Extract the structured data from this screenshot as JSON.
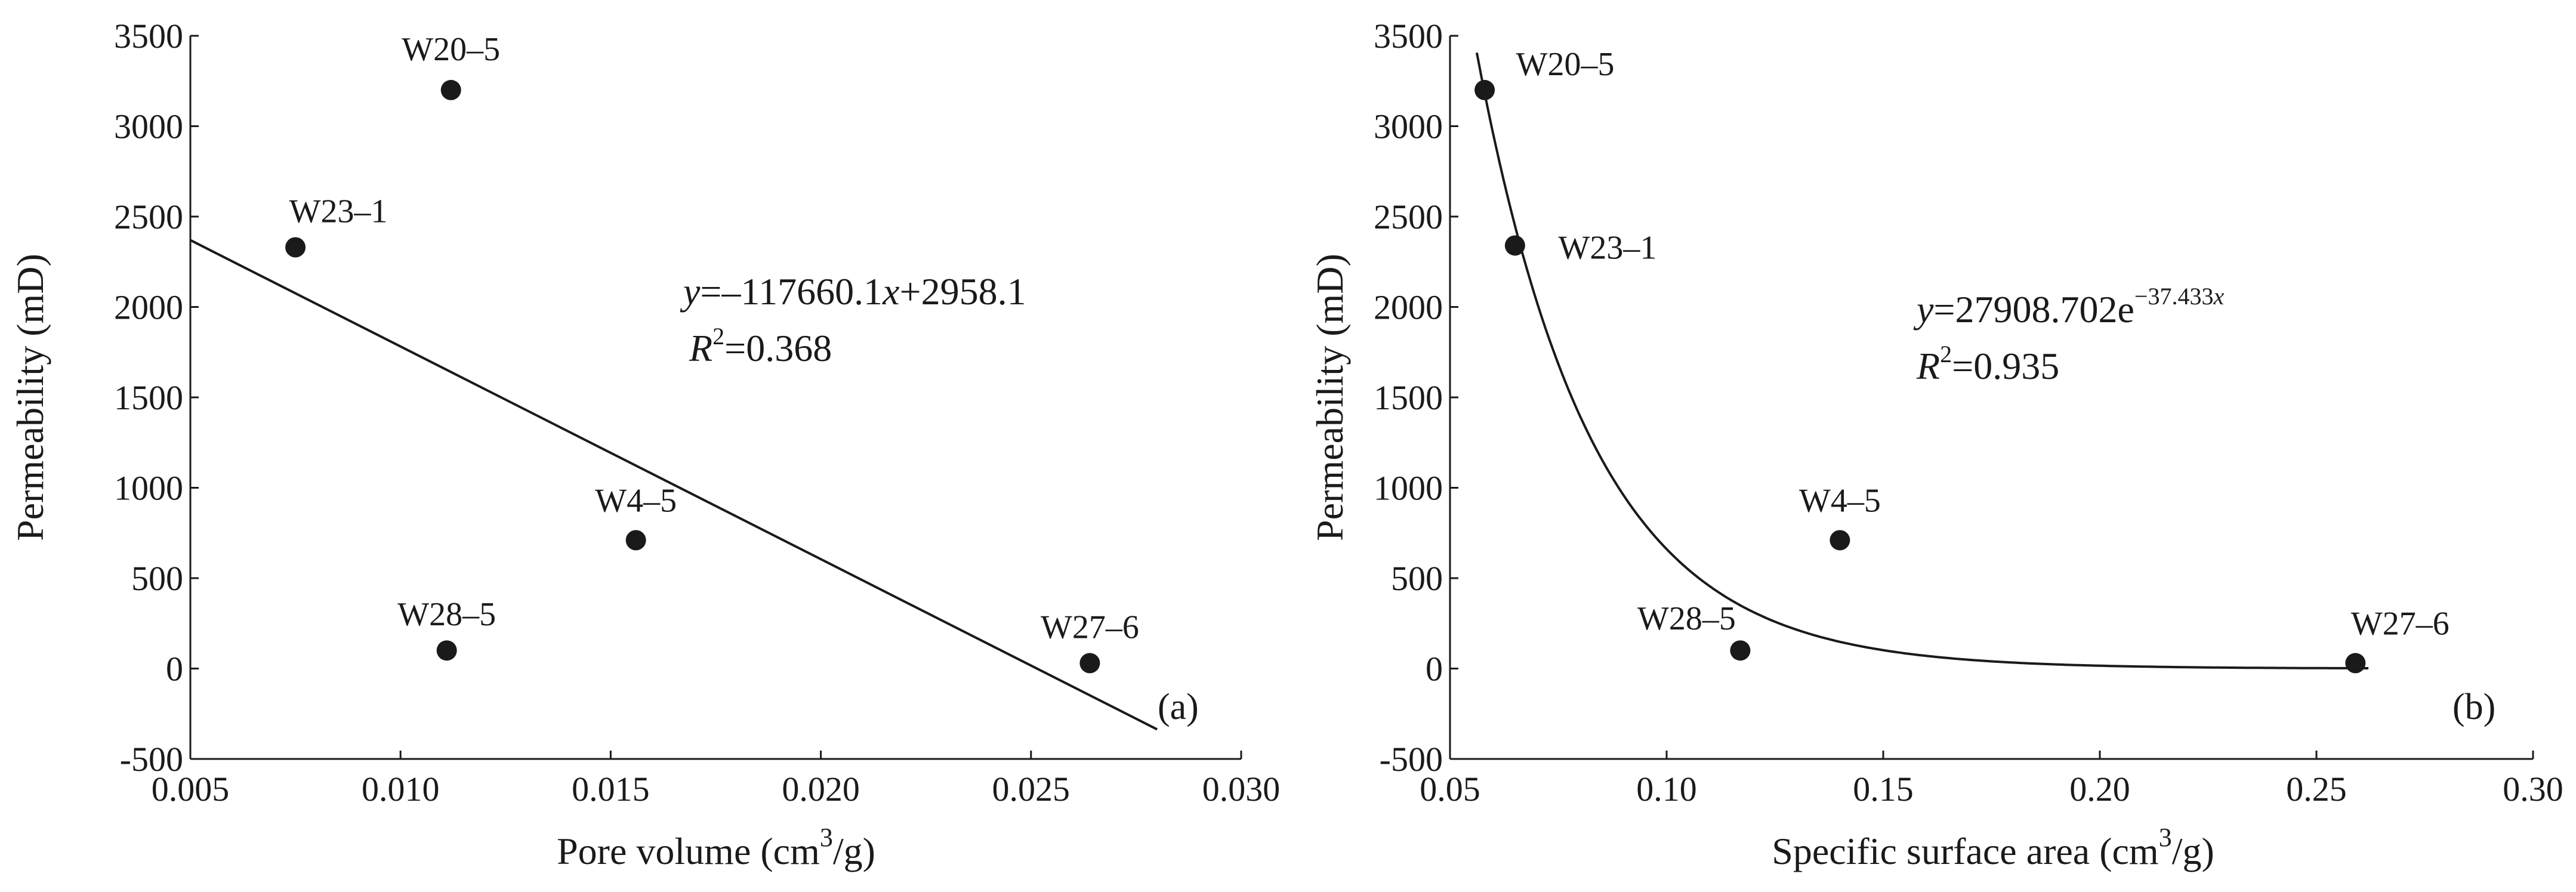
{
  "chart_data": [
    {
      "type": "scatter",
      "panel_label": "(a)",
      "xlabel_main": "Pore volume (cm",
      "xlabel_sup": "3",
      "xlabel_tail": "/g)",
      "ylabel": "Permeability (mD)",
      "xlim": [
        0.005,
        0.03
      ],
      "ylim": [
        -500,
        3500
      ],
      "x_ticks": [
        0.005,
        0.01,
        0.015,
        0.02,
        0.025,
        0.03
      ],
      "x_tick_labels": [
        "0.005",
        "0.010",
        "0.015",
        "0.020",
        "0.025",
        "0.030"
      ],
      "y_ticks": [
        -500,
        0,
        500,
        1000,
        1500,
        2000,
        2500,
        3000,
        3500
      ],
      "y_tick_labels": [
        "-500",
        "0",
        "500",
        "1000",
        "1500",
        "2000",
        "2500",
        "3000",
        "3500"
      ],
      "points": [
        {
          "label": "W20–5",
          "x": 0.0112,
          "y": 3200
        },
        {
          "label": "W23–1",
          "x": 0.0075,
          "y": 2330
        },
        {
          "label": "W4–5",
          "x": 0.0156,
          "y": 710
        },
        {
          "label": "W28–5",
          "x": 0.0111,
          "y": 100
        },
        {
          "label": "W27–6",
          "x": 0.0264,
          "y": 30
        }
      ],
      "fit": {
        "kind": "linear",
        "slope": -117660.1,
        "intercept": 2958.1,
        "x_from": 0.005,
        "x_to": 0.028
      },
      "equation": {
        "y": "y",
        "eq": "=–117660.1",
        "x": "x",
        "rest": "+2958.1",
        "r2_r": "R",
        "r2_sup": "2",
        "r2_val": "=0.368"
      }
    },
    {
      "type": "scatter",
      "panel_label": "(b)",
      "xlabel_main": "Specific surface area (cm",
      "xlabel_sup": "3",
      "xlabel_tail": "/g)",
      "ylabel": "Permeability (mD)",
      "xlim": [
        0.05,
        0.3
      ],
      "ylim": [
        -500,
        3500
      ],
      "x_ticks": [
        0.05,
        0.1,
        0.15,
        0.2,
        0.25,
        0.3
      ],
      "x_tick_labels": [
        "0.05",
        "0.10",
        "0.15",
        "0.20",
        "0.25",
        "0.30"
      ],
      "y_ticks": [
        -500,
        0,
        500,
        1000,
        1500,
        2000,
        2500,
        3000,
        3500
      ],
      "y_tick_labels": [
        "-500",
        "0",
        "500",
        "1000",
        "1500",
        "2000",
        "2500",
        "3000",
        "3500"
      ],
      "points": [
        {
          "label": "W20–5",
          "x": 0.058,
          "y": 3200
        },
        {
          "label": "W23–1",
          "x": 0.065,
          "y": 2340
        },
        {
          "label": "W4–5",
          "x": 0.14,
          "y": 710
        },
        {
          "label": "W28–5",
          "x": 0.117,
          "y": 100
        },
        {
          "label": "W27–6",
          "x": 0.259,
          "y": 30
        }
      ],
      "fit": {
        "kind": "exponential",
        "a": 27908.702,
        "b": -37.433,
        "x_from": 0.05,
        "x_to": 0.262
      },
      "equation": {
        "y": "y",
        "eq": "=27908.702e",
        "exp": "−37.433",
        "exp_x": "x",
        "r2_r": "R",
        "r2_sup": "2",
        "r2_val": "=0.935"
      }
    }
  ]
}
